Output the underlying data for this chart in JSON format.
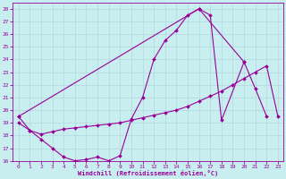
{
  "xlabel": "Windchill (Refroidissement éolien,°C)",
  "bg_color": "#c8eef0",
  "grid_color": "#b0d8dc",
  "line_color": "#990099",
  "xlim": [
    -0.5,
    23.5
  ],
  "ylim": [
    16,
    28.5
  ],
  "xticks": [
    0,
    1,
    2,
    3,
    4,
    5,
    6,
    7,
    8,
    9,
    10,
    11,
    12,
    13,
    14,
    15,
    16,
    17,
    18,
    19,
    20,
    21,
    22,
    23
  ],
  "yticks": [
    16,
    17,
    18,
    19,
    20,
    21,
    22,
    23,
    24,
    25,
    26,
    27,
    28
  ],
  "line1_x": [
    0,
    1,
    2,
    3,
    4,
    5,
    6,
    7,
    8,
    9,
    10,
    11,
    12,
    13,
    14,
    15,
    16,
    17,
    18,
    20,
    21,
    22
  ],
  "line1_y": [
    19.5,
    18.4,
    17.7,
    17.0,
    16.3,
    16.0,
    16.1,
    16.3,
    16.0,
    16.4,
    19.3,
    21.0,
    24.0,
    25.5,
    26.3,
    27.5,
    28.0,
    27.5,
    19.2,
    23.8,
    21.7,
    19.5
  ],
  "line2_x": [
    0,
    1,
    2,
    3,
    4,
    5,
    6,
    7,
    8,
    9,
    10,
    11,
    12,
    13,
    14,
    15,
    16,
    17,
    18,
    19,
    20,
    21,
    22,
    23
  ],
  "line2_y": [
    19.0,
    18.4,
    18.1,
    18.3,
    18.5,
    18.6,
    18.7,
    18.8,
    18.9,
    19.0,
    19.2,
    19.4,
    19.6,
    19.8,
    20.0,
    20.3,
    20.7,
    21.1,
    21.5,
    22.0,
    22.5,
    23.0,
    23.5,
    19.5
  ],
  "line3_x": [
    0,
    16,
    20
  ],
  "line3_y": [
    19.5,
    28.0,
    23.8
  ]
}
